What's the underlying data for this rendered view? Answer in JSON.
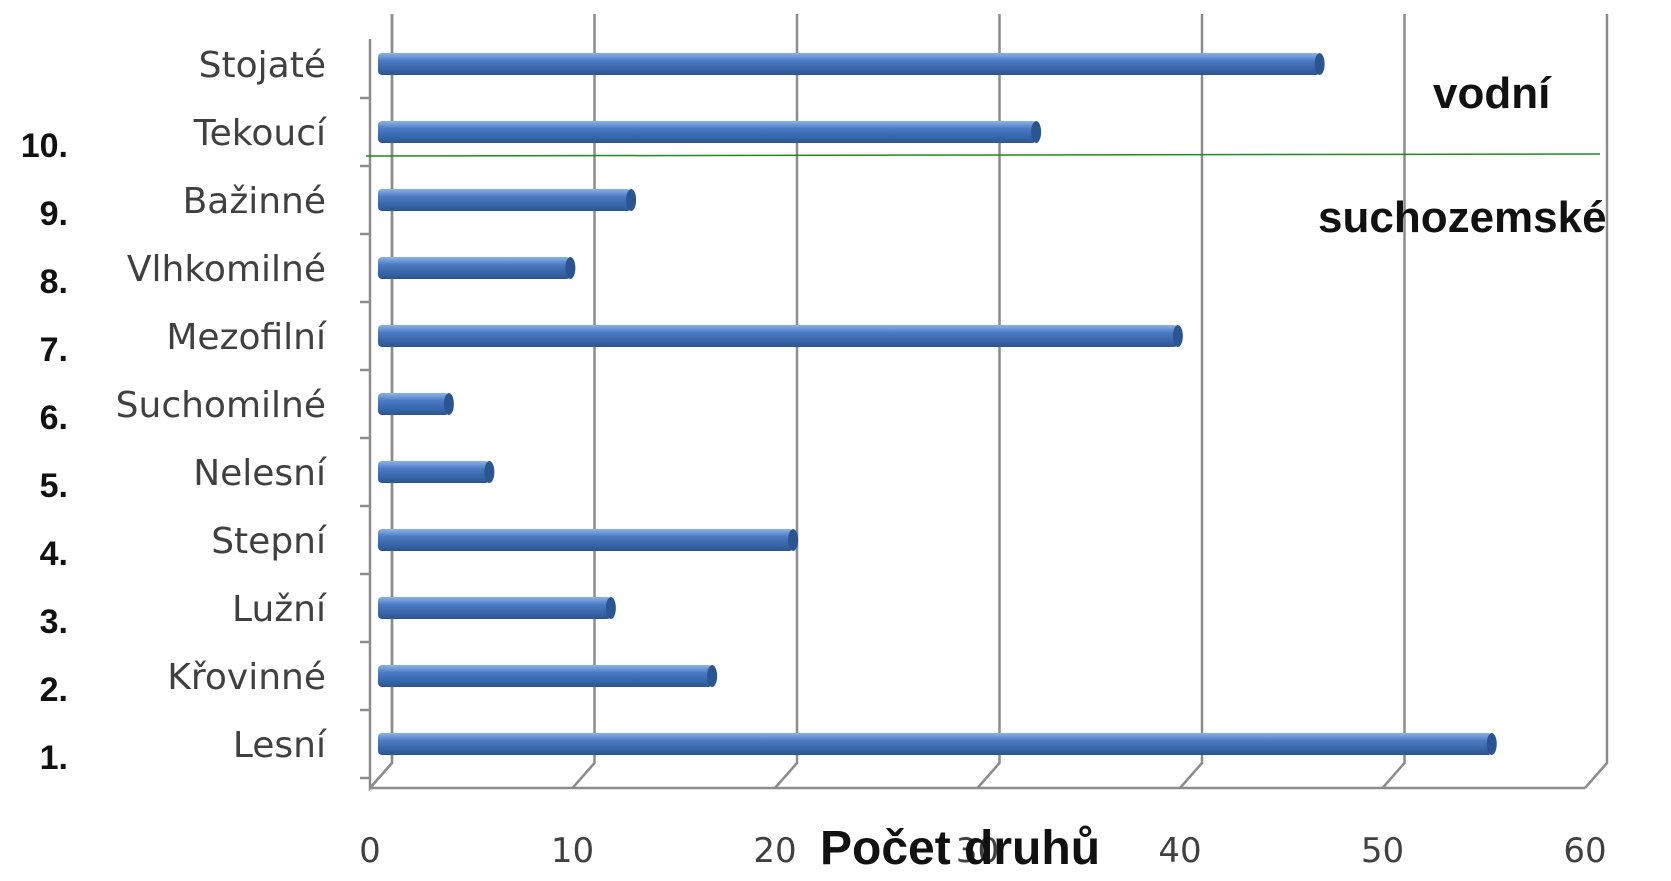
{
  "chart_data": {
    "type": "bar",
    "orientation": "horizontal",
    "categories": [
      "Lesní",
      "Křovinné",
      "Lužní",
      "Stepní",
      "Nelesní",
      "Suchomilné",
      "Mezofilní",
      "Vlhkomilné",
      "Bažinné",
      "Tekoucí",
      "Stojaté"
    ],
    "category_numbers": [
      "1.",
      "2.",
      "3.",
      "4.",
      "5.",
      "6.",
      "7.",
      "8.",
      "9.",
      "10.",
      ""
    ],
    "values": [
      55,
      16.5,
      11.5,
      20.5,
      5.5,
      3.5,
      39.5,
      9.5,
      12.5,
      32.5,
      46.5
    ],
    "xlabel": "Počet druhů",
    "xticks": [
      "0",
      "10",
      "20",
      "30",
      "40",
      "50",
      "60"
    ],
    "xlim": [
      0,
      60
    ],
    "grid": true,
    "annotations": {
      "upper_group": "vodní",
      "lower_group": "suchozemské"
    },
    "colors": {
      "bar": "#4a7ac4",
      "bar_dark": "#2b5591",
      "bar_light": "#8fb2e6",
      "grid": "#8c8c8c",
      "separator": "#1f8a1f"
    }
  }
}
